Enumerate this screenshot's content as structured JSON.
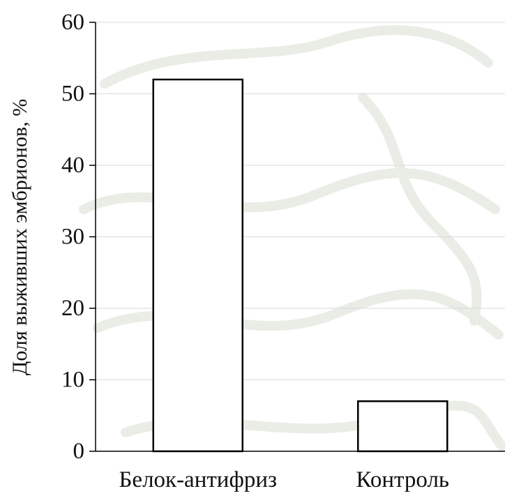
{
  "chart_data": {
    "type": "bar",
    "categories": [
      "Белок-антифриз",
      "Контроль"
    ],
    "series": [
      {
        "values": [
          52,
          7
        ]
      }
    ],
    "title": "",
    "xlabel": "",
    "ylabel": "Доля выживших эмбрионов, %",
    "ylim": [
      0,
      60
    ],
    "yticks": [
      0,
      10,
      20,
      30,
      40,
      50,
      60
    ],
    "grid": true,
    "bar_fill": "#ffffff",
    "bar_stroke": "#000000",
    "gridline_color": "#d9d9d9"
  }
}
